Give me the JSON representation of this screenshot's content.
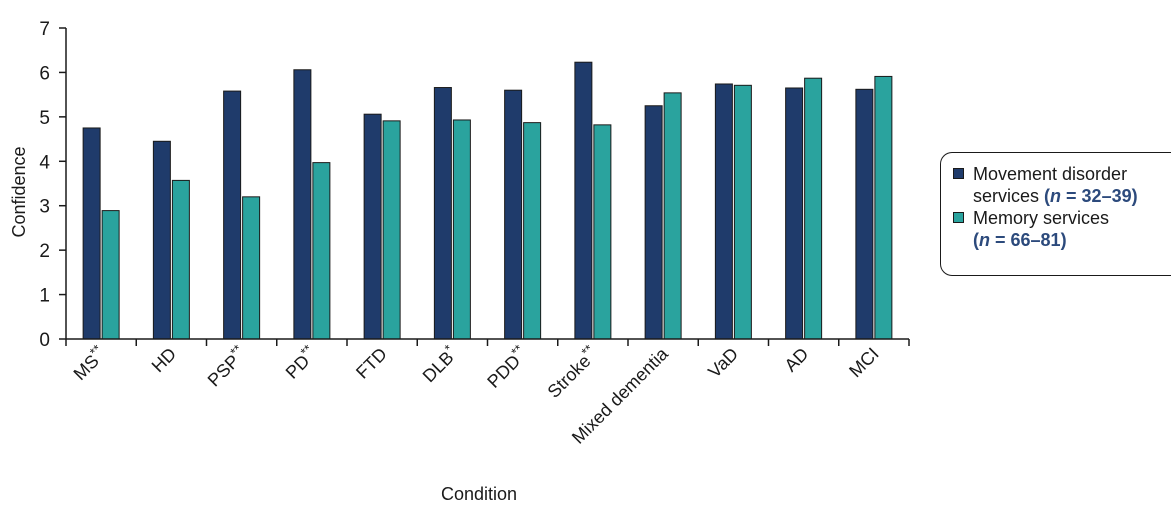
{
  "chart_data": {
    "type": "bar",
    "xlabel": "Condition",
    "ylabel": "Confidence",
    "ylim": [
      0,
      7
    ],
    "yticks": [
      0,
      1,
      2,
      3,
      4,
      5,
      6,
      7
    ],
    "categories": [
      "MS**",
      "HD",
      "PSP**",
      "PD**",
      "FTD",
      "DLB*",
      "PDD**",
      "Stroke**",
      "Mixed dementia",
      "VaD",
      "AD",
      "MCI"
    ],
    "series": [
      {
        "name": "Movement disorder services (n = 32–39)",
        "name_text": "Movement disorder services",
        "name_n": "(n = 32–39)",
        "color": "#1f3b6b",
        "values": [
          4.75,
          4.45,
          5.58,
          6.06,
          5.06,
          5.66,
          5.6,
          6.23,
          5.25,
          5.74,
          5.65,
          5.62
        ]
      },
      {
        "name": "Memory services (n = 66–81)",
        "name_text": "Memory services",
        "name_n": "(n = 66–81)",
        "color": "#2aa39e",
        "values": [
          2.89,
          3.57,
          3.2,
          3.97,
          4.91,
          4.93,
          4.87,
          4.82,
          5.54,
          5.71,
          5.87,
          5.91
        ]
      }
    ],
    "legend_position": "right",
    "grid": false
  }
}
